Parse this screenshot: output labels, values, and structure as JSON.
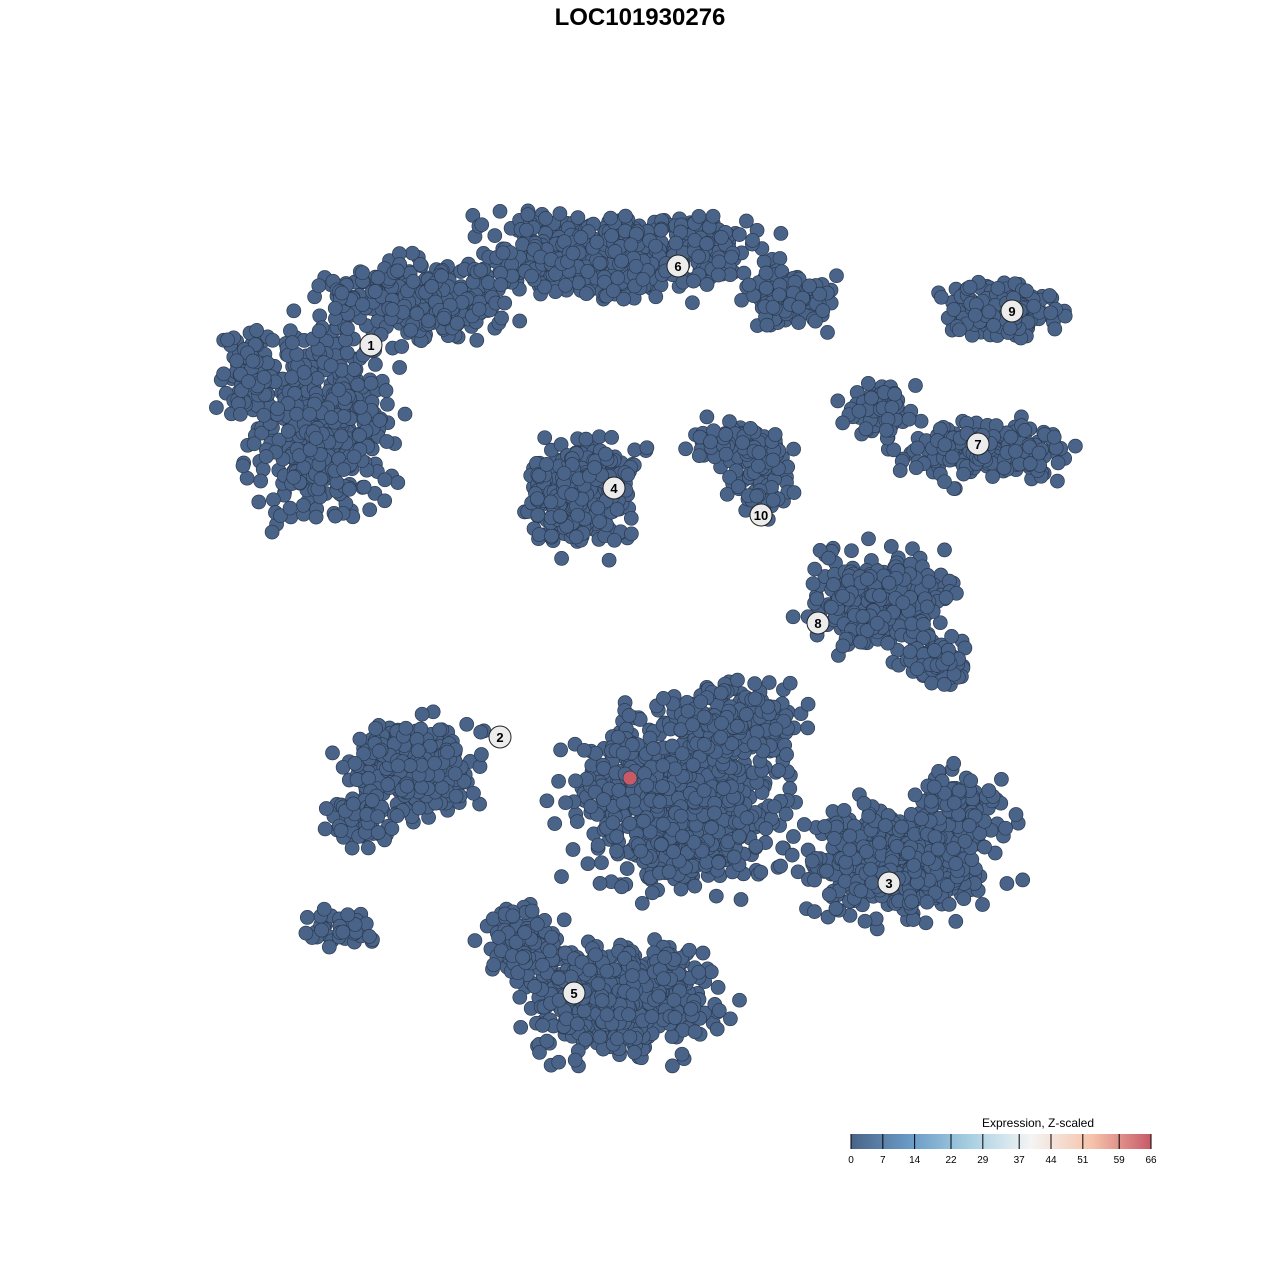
{
  "chart_data": {
    "type": "scatter",
    "title": "LOC101930276",
    "xlabel": "",
    "ylabel": "",
    "axes_visible": false,
    "grid": false,
    "point_color_default": "#4a6489",
    "cluster_labels": [
      "1",
      "2",
      "3",
      "4",
      "5",
      "6",
      "7",
      "8",
      "9",
      "10"
    ],
    "highlighted_points": [
      {
        "cluster": "2-5 boundary",
        "expression": 66,
        "color": "#c85a68"
      }
    ],
    "colorbar": {
      "title": "Expression, Z-scaled",
      "placement": "bottom-right",
      "range": [
        0,
        66
      ],
      "ticks": [
        "0",
        "7",
        "14",
        "22",
        "29",
        "37",
        "44",
        "51",
        "59",
        "66"
      ],
      "colors": [
        "#4a6489",
        "#6a9cc7",
        "#a8d0e2",
        "#f4f4f4",
        "#f6c4ab",
        "#c85a68"
      ]
    }
  }
}
